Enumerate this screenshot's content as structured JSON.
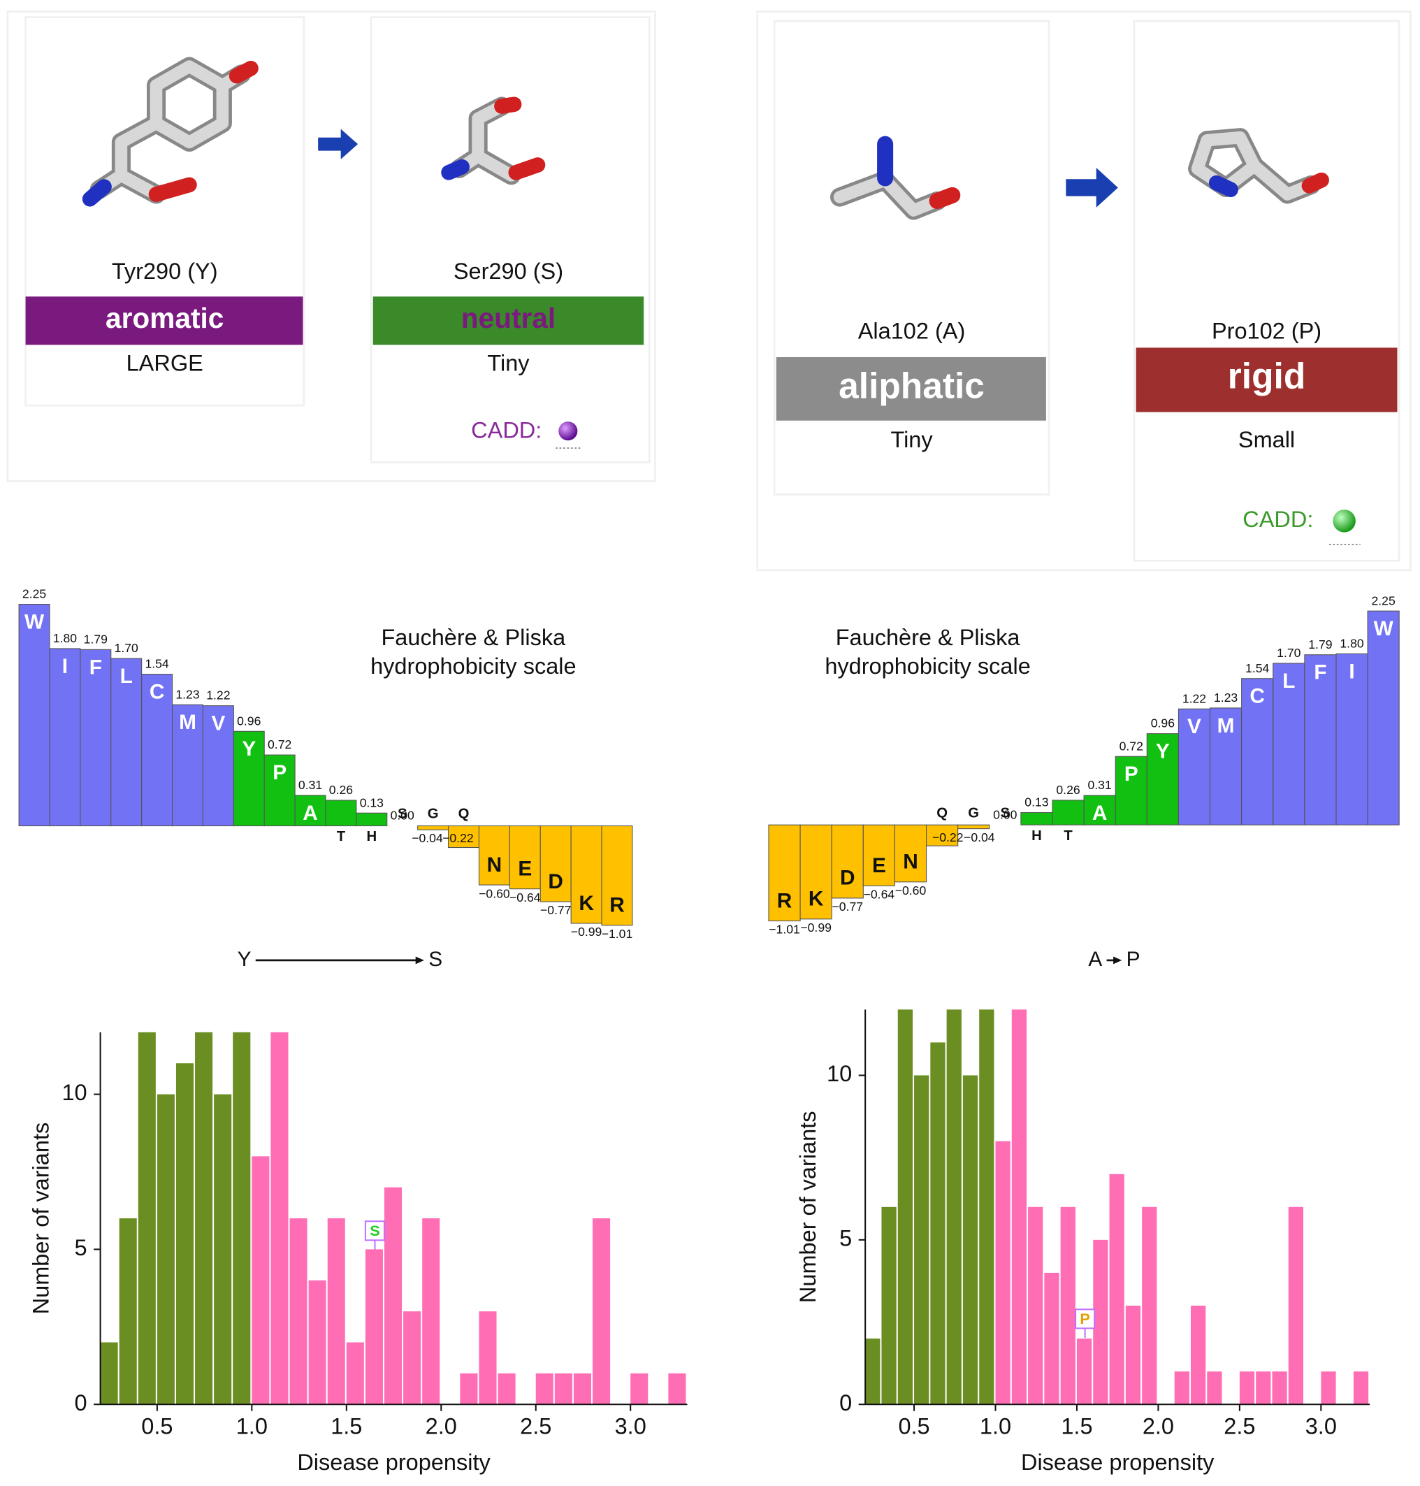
{
  "panels": [
    {
      "residues": [
        {
          "name": "Tyr290 (Y)",
          "class": "aromatic",
          "size": "LARGE",
          "color": "#7b1a7e",
          "text_color": "#ffffff"
        },
        {
          "name": "Ser290 (S)",
          "class": "neutral",
          "size": "Tiny",
          "color": "#3a8a2a",
          "text_color": "#7b1a7e"
        }
      ],
      "cadd": "CADD:",
      "cadd_color": "#8a2a9a"
    },
    {
      "residues": [
        {
          "name": "Ala102 (A)",
          "class": "aliphatic",
          "size": "Tiny",
          "color": "#8c8c8c",
          "text_color": "#ffffff"
        },
        {
          "name": "Pro102 (P)",
          "class": "rigid",
          "size": "Small",
          "color": "#9e2f2f",
          "text_color": "#ffffff"
        }
      ],
      "cadd": "CADD:",
      "cadd_color": "#3a9a2a"
    }
  ],
  "chart_data": [
    {
      "type": "bar",
      "title": [
        "Fauchère & Pliska",
        "hydrophobicity scale"
      ],
      "from": "Y",
      "to": "S",
      "categories": [
        "W",
        "I",
        "F",
        "L",
        "C",
        "M",
        "V",
        "Y",
        "P",
        "A",
        "T",
        "H",
        "S",
        "G",
        "Q",
        "N",
        "E",
        "D",
        "K",
        "R"
      ],
      "values": [
        2.25,
        1.8,
        1.79,
        1.7,
        1.54,
        1.23,
        1.22,
        0.96,
        0.72,
        0.31,
        0.26,
        0.13,
        0,
        -0.04,
        -0.22,
        -0.6,
        -0.64,
        -0.77,
        -0.99,
        -1.01
      ],
      "value_labels": [
        "2.25",
        "1.80",
        "1.79",
        "1.70",
        "1.54",
        "1.23",
        "1.22",
        "0.96",
        "0.72",
        "0.31",
        "0.26",
        "0.13",
        "0.00",
        "−0.04",
        "−0.22",
        "−0.60",
        "−0.64",
        "−0.77",
        "−0.99",
        "−1.01"
      ],
      "colors": [
        "#7272f5",
        "#7272f5",
        "#7272f5",
        "#7272f5",
        "#7272f5",
        "#7272f5",
        "#7272f5",
        "#12c012",
        "#12c012",
        "#12c012",
        "#12c012",
        "#12c012",
        "#ffc000",
        "#ffc000",
        "#ffc000",
        "#ffc000",
        "#ffc000",
        "#ffc000",
        "#ffc000",
        "#ffc000"
      ]
    },
    {
      "type": "bar",
      "title": [
        "Fauchère & Pliska",
        "hydrophobicity scale"
      ],
      "from": "A",
      "to": "P",
      "categories": [
        "R",
        "K",
        "D",
        "E",
        "N",
        "Q",
        "G",
        "S",
        "H",
        "T",
        "A",
        "P",
        "Y",
        "V",
        "M",
        "C",
        "L",
        "F",
        "I",
        "W"
      ],
      "values": [
        -1.01,
        -0.99,
        -0.77,
        -0.64,
        -0.6,
        -0.22,
        -0.04,
        0,
        0.13,
        0.26,
        0.31,
        0.72,
        0.96,
        1.22,
        1.23,
        1.54,
        1.7,
        1.79,
        1.8,
        2.25
      ],
      "value_labels": [
        "−1.01",
        "−0.99",
        "−0.77",
        "−0.64",
        "−0.60",
        "−0.22",
        "−0.04",
        "0.00",
        "0.13",
        "0.26",
        "0.31",
        "0.72",
        "0.96",
        "1.22",
        "1.23",
        "1.54",
        "1.70",
        "1.79",
        "1.80",
        "2.25"
      ],
      "colors": [
        "#ffc000",
        "#ffc000",
        "#ffc000",
        "#ffc000",
        "#ffc000",
        "#ffc000",
        "#ffc000",
        "#ffc000",
        "#12c012",
        "#12c012",
        "#12c012",
        "#12c012",
        "#12c012",
        "#7272f5",
        "#7272f5",
        "#7272f5",
        "#7272f5",
        "#7272f5",
        "#7272f5",
        "#7272f5"
      ]
    },
    {
      "type": "histogram",
      "xlabel": "Disease propensity",
      "ylabel": "Number of variants",
      "bins": [
        0.2,
        0.3,
        0.4,
        0.5,
        0.6,
        0.7,
        0.8,
        0.9,
        1.0,
        1.1,
        1.2,
        1.3,
        1.4,
        1.5,
        1.6,
        1.7,
        1.8,
        1.9,
        2.0,
        2.1,
        2.2,
        2.3,
        2.4,
        2.5,
        2.6,
        2.7,
        2.8,
        2.9,
        3.0,
        3.1,
        3.2,
        3.3
      ],
      "values": [
        2,
        6,
        12,
        10,
        11,
        12,
        10,
        12,
        8,
        12,
        6,
        4,
        6,
        2,
        5,
        7,
        3,
        6,
        0,
        1,
        3,
        1,
        0,
        1,
        1,
        1,
        6,
        0,
        1,
        0,
        1
      ],
      "colors": [
        "#6b8e23",
        "#6b8e23",
        "#6b8e23",
        "#6b8e23",
        "#6b8e23",
        "#6b8e23",
        "#6b8e23",
        "#6b8e23",
        "#ff6eb4",
        "#ff6eb4",
        "#ff6eb4",
        "#ff6eb4",
        "#ff6eb4",
        "#ff6eb4",
        "#ff6eb4",
        "#ff6eb4",
        "#ff6eb4",
        "#ff6eb4",
        "#ff6eb4",
        "#ff6eb4",
        "#ff6eb4",
        "#ff6eb4",
        "#ff6eb4",
        "#ff6eb4",
        "#ff6eb4",
        "#ff6eb4",
        "#ff6eb4",
        "#ff6eb4",
        "#ff6eb4",
        "#ff6eb4",
        "#ff6eb4"
      ],
      "xlim": [
        0.2,
        3.3
      ],
      "ylim": [
        0,
        12
      ],
      "xticks": [
        0.5,
        {
          "value": 1,
          "label": "1.0"
        },
        1.5,
        {
          "value": 2,
          "label": "2.0"
        },
        2.5,
        {
          "value": 3,
          "label": "3.0"
        }
      ],
      "yticks": [
        0,
        5,
        10
      ],
      "annotation": {
        "text": "S",
        "x": 1.65,
        "y": 5.6,
        "color": "#22cc22"
      }
    },
    {
      "type": "histogram",
      "xlabel": "Disease propensity",
      "ylabel": "Number of variants",
      "bins": [
        0.2,
        0.3,
        0.4,
        0.5,
        0.6,
        0.7,
        0.8,
        0.9,
        1.0,
        1.1,
        1.2,
        1.3,
        1.4,
        1.5,
        1.6,
        1.7,
        1.8,
        1.9,
        2.0,
        2.1,
        2.2,
        2.3,
        2.4,
        2.5,
        2.6,
        2.7,
        2.8,
        2.9,
        3.0,
        3.1,
        3.2,
        3.3
      ],
      "values": [
        2,
        6,
        12,
        10,
        11,
        12,
        10,
        12,
        8,
        12,
        6,
        4,
        6,
        2,
        5,
        7,
        3,
        6,
        0,
        1,
        3,
        1,
        0,
        1,
        1,
        1,
        6,
        0,
        1,
        0,
        1
      ],
      "colors": [
        "#6b8e23",
        "#6b8e23",
        "#6b8e23",
        "#6b8e23",
        "#6b8e23",
        "#6b8e23",
        "#6b8e23",
        "#6b8e23",
        "#ff6eb4",
        "#ff6eb4",
        "#ff6eb4",
        "#ff6eb4",
        "#ff6eb4",
        "#ff6eb4",
        "#ff6eb4",
        "#ff6eb4",
        "#ff6eb4",
        "#ff6eb4",
        "#ff6eb4",
        "#ff6eb4",
        "#ff6eb4",
        "#ff6eb4",
        "#ff6eb4",
        "#ff6eb4",
        "#ff6eb4",
        "#ff6eb4",
        "#ff6eb4",
        "#ff6eb4",
        "#ff6eb4",
        "#ff6eb4",
        "#ff6eb4"
      ],
      "xlim": [
        0.2,
        3.3
      ],
      "ylim": [
        0,
        12
      ],
      "xticks": [
        0.5,
        {
          "value": 1,
          "label": "1.0"
        },
        1.5,
        {
          "value": 2,
          "label": "2.0"
        },
        2.5,
        {
          "value": 3,
          "label": "3.0"
        }
      ],
      "yticks": [
        0,
        5,
        10
      ],
      "annotation": {
        "text": "P",
        "x": 1.55,
        "y": 2.6,
        "color": "#e0a000"
      }
    }
  ]
}
